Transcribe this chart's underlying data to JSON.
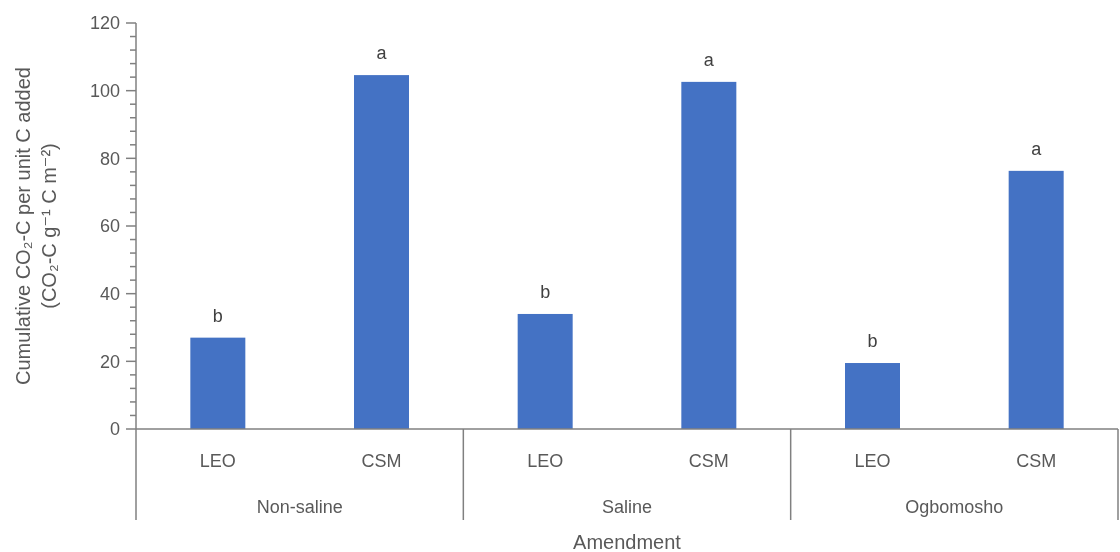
{
  "chart_data": {
    "type": "bar",
    "xlabel": "Amendment",
    "ylabel": "Cumulative CO₂-C per unit C added\n(CO₂-C g⁻¹ C m⁻²)",
    "categories": [
      "LEO",
      "CSM",
      "LEO",
      "CSM",
      "LEO",
      "CSM"
    ],
    "values": [
      27,
      104.6,
      34,
      102.6,
      19.5,
      76.3
    ],
    "value_labels": [
      "b",
      "a",
      "b",
      "a",
      "b",
      "a"
    ],
    "color": "#4472c4",
    "annotations": [
      "Non-saline",
      "Saline",
      "Ogbomosho"
    ],
    "ylim": [
      0,
      120
    ],
    "yticks": [
      0,
      {
        "value": 4,
        "label": null
      },
      {
        "value": 8,
        "label": null
      },
      {
        "value": 12,
        "label": null
      },
      {
        "value": 16,
        "label": null
      },
      20,
      {
        "value": 24,
        "label": null
      },
      {
        "value": 28,
        "label": null
      },
      {
        "value": 32,
        "label": null
      },
      {
        "value": 36,
        "label": null
      },
      40,
      {
        "value": 44,
        "label": null
      },
      {
        "value": 48,
        "label": null
      },
      {
        "value": 52,
        "label": null
      },
      {
        "value": 56,
        "label": null
      },
      60,
      {
        "value": 64,
        "label": null
      },
      {
        "value": 68,
        "label": null
      },
      {
        "value": 72,
        "label": null
      },
      {
        "value": 76,
        "label": null
      },
      80,
      {
        "value": 84,
        "label": null
      },
      {
        "value": 88,
        "label": null
      },
      {
        "value": 92,
        "label": null
      },
      {
        "value": 96,
        "label": null
      },
      100,
      {
        "value": 104,
        "label": null
      },
      {
        "value": 108,
        "label": null
      },
      {
        "value": 112,
        "label": null
      },
      {
        "value": 116,
        "label": null
      },
      120
    ],
    "grid": false
  }
}
